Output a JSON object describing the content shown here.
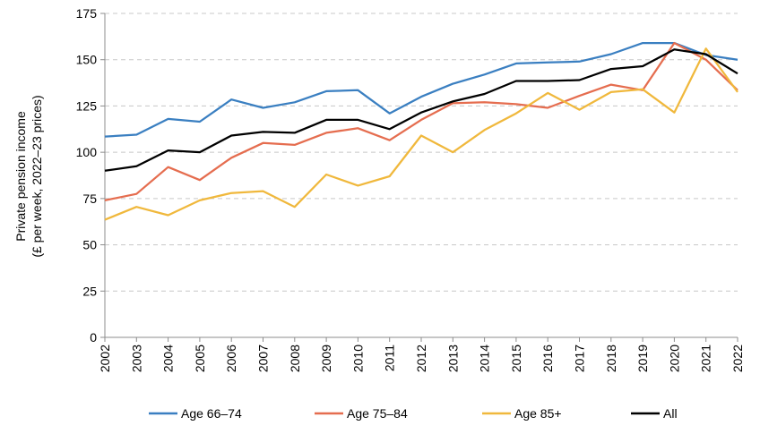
{
  "chart_data": {
    "type": "line",
    "title": "",
    "xlabel": "",
    "ylabel": [
      "Private pension income",
      "(£ per week, 2022–23 prices)"
    ],
    "ylim": [
      0,
      175
    ],
    "yticks": [
      0,
      25,
      50,
      75,
      100,
      125,
      150,
      175
    ],
    "grid": "horizontal dashed",
    "legend_position": "bottom",
    "x": [
      "2002",
      "2003",
      "2004",
      "2005",
      "2006",
      "2007",
      "2008",
      "2009",
      "2010",
      "2011",
      "2012",
      "2013",
      "2014",
      "2015",
      "2016",
      "2017",
      "2018",
      "2019",
      "2020",
      "2021",
      "2022"
    ],
    "series": [
      {
        "name": "Age 66–74",
        "color": "#3a7fc1",
        "values": [
          108.5,
          109.5,
          118,
          116.5,
          128.5,
          124,
          127,
          133,
          133.5,
          121,
          130,
          137,
          142,
          148,
          148.5,
          149,
          153,
          159,
          159,
          152.5,
          150
        ]
      },
      {
        "name": "Age 75–84",
        "color": "#e56d4f",
        "values": [
          74,
          77.5,
          92,
          85,
          97,
          105,
          104,
          110.5,
          113,
          106.5,
          117.5,
          126.5,
          127,
          126,
          124,
          130.5,
          136.5,
          133.5,
          159,
          150,
          133.5
        ]
      },
      {
        "name": "Age 85+",
        "color": "#f0b83c",
        "values": [
          63.5,
          70.5,
          66,
          74,
          78,
          79,
          70.5,
          88,
          82,
          87,
          109,
          100,
          112,
          121,
          132,
          123,
          132.5,
          134,
          121.5,
          156,
          132.5
        ]
      },
      {
        "name": "All",
        "color": "#000000",
        "values": [
          90,
          92.5,
          101,
          100,
          109,
          111,
          110.5,
          117.5,
          117.5,
          112.5,
          121.5,
          127.5,
          131.5,
          138.5,
          138.5,
          139,
          145,
          146.5,
          155.5,
          153,
          142.5
        ]
      }
    ]
  }
}
